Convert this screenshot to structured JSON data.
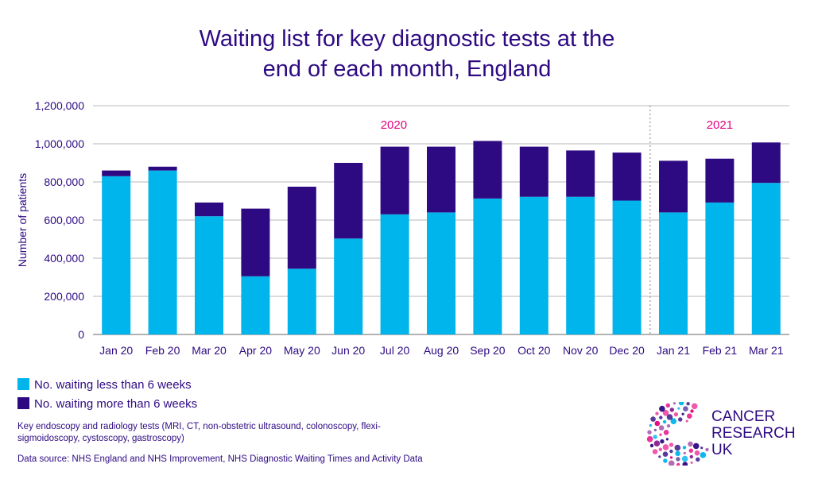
{
  "title_lines": [
    "Waiting list for key diagnostic tests at the",
    "end of each month, England"
  ],
  "chart_data": {
    "type": "bar",
    "stacked": true,
    "categories": [
      "Jan 20",
      "Feb 20",
      "Mar 20",
      "Apr 20",
      "May 20",
      "Jun 20",
      "Jul 20",
      "Aug 20",
      "Sep 20",
      "Oct 20",
      "Nov 20",
      "Dec 20",
      "Jan 21",
      "Feb 21",
      "Mar 21"
    ],
    "series": [
      {
        "name": "No. waiting less than 6 weeks",
        "color": "#00b4ec",
        "values": [
          830000,
          860000,
          620000,
          305000,
          345000,
          503000,
          630000,
          640000,
          713000,
          722000,
          722000,
          702000,
          640000,
          692000,
          795000
        ]
      },
      {
        "name": "No. waiting more than 6 weeks",
        "color": "#2e0a82",
        "values": [
          30000,
          20000,
          72000,
          355000,
          430000,
          397000,
          355000,
          345000,
          302000,
          263000,
          243000,
          252000,
          271000,
          230000,
          212000
        ]
      }
    ],
    "ylabel": "Number of patients",
    "ylim": [
      0,
      1200000
    ],
    "yticks": [
      "0",
      "200,000",
      "400,000",
      "600,000",
      "800,000",
      "1,000,000",
      "1,200,000"
    ],
    "grid": true,
    "year_labels": [
      "2020",
      "2021"
    ],
    "year_label_color": "#e6007e",
    "year_divider_after": "Dec 20"
  },
  "legend": {
    "less": "No. waiting less than 6 weeks",
    "more": "No. waiting more than 6 weeks"
  },
  "notes": {
    "tests": "Key endoscopy and radiology tests (MRI, CT, non-obstetric ultrasound, colonoscopy, flexi-sigmoidoscopy, cystoscopy, gastroscopy)",
    "source": "Data source: NHS England and NHS Improvement, NHS Diagnostic Waiting Times and Activity Data"
  },
  "logo": {
    "lines": [
      "CANCER",
      "RESEARCH",
      "UK"
    ]
  },
  "colors": {
    "text": "#2e0a82",
    "light": "#00b4ec",
    "dark": "#2e0a82",
    "accent": "#e6007e",
    "grid": "#cfcfcf"
  }
}
